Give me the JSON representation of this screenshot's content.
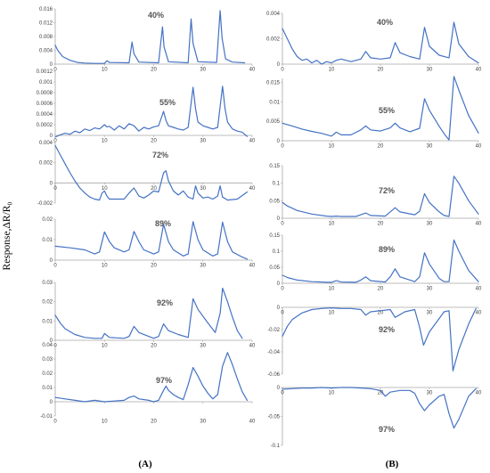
{
  "figure": {
    "ylabel": "Response,ΔR/R₀",
    "colors": {
      "line": "#4472C4",
      "axis": "#a6a6a6",
      "text": "#404040"
    }
  },
  "chart_data": [
    {
      "type": "line",
      "panel": "A",
      "panel_label": "(A)",
      "rh_label": "40%",
      "xlim": [
        0,
        40
      ],
      "ylim": [
        0,
        0.016
      ],
      "yticks": [
        0,
        0.004,
        0.008,
        0.012,
        0.016
      ],
      "ytick_labels": [
        "0",
        "0.004",
        "0.008",
        "0.012",
        "0.016"
      ],
      "xticks": [
        0,
        10,
        20,
        30,
        40
      ],
      "x": [
        0,
        0.5,
        1.5,
        3,
        4.5,
        6,
        8,
        10,
        10.5,
        11,
        15,
        15.6,
        16,
        17,
        21,
        21.8,
        22.1,
        23,
        27,
        27.6,
        28,
        29,
        32.8,
        33.5,
        33.9,
        34.6,
        36,
        38.5
      ],
      "y": [
        0.0055,
        0.004,
        0.0022,
        0.0011,
        0.0005,
        0.0003,
        0.0002,
        0.0002,
        0.001,
        0.0005,
        0.0004,
        0.0064,
        0.003,
        0.0006,
        0.0004,
        0.0108,
        0.005,
        0.0007,
        0.0004,
        0.0131,
        0.006,
        0.0007,
        0.0005,
        0.0155,
        0.0075,
        0.0015,
        0.0006,
        0.0004
      ]
    },
    {
      "type": "line",
      "panel": "A",
      "rh_label": "55%",
      "xlim": [
        0,
        40
      ],
      "ylim": [
        0,
        0.0012
      ],
      "yticks": [
        0,
        0.0002,
        0.0004,
        0.0006,
        0.0008,
        0.001,
        0.0012
      ],
      "ytick_labels": [
        "0",
        "0.0002",
        "0.0004",
        "0.0006",
        "0.0008",
        "0.001",
        "0.0012"
      ],
      "xticks": [
        0,
        10,
        20,
        30,
        40
      ],
      "x": [
        0,
        1,
        2,
        3,
        4,
        5,
        6,
        7,
        8,
        9,
        10,
        10.5,
        11,
        12,
        13,
        14,
        15,
        16,
        17,
        18,
        19,
        20,
        21,
        22,
        22.5,
        23,
        24,
        25,
        26,
        27,
        28,
        28.5,
        29,
        30,
        31,
        32,
        33,
        34,
        34.5,
        35,
        36,
        37,
        38,
        39
      ],
      "y": [
        -3e-05,
        1e-05,
        4e-05,
        2e-05,
        8e-05,
        5e-05,
        0.00012,
        9e-05,
        0.00014,
        0.00012,
        0.0002,
        0.00016,
        0.00017,
        0.0001,
        0.00018,
        0.00012,
        0.00022,
        0.00018,
        8e-05,
        0.00015,
        0.00012,
        0.00016,
        0.00018,
        0.00045,
        0.00028,
        0.00018,
        0.00015,
        0.00012,
        0.0001,
        0.00015,
        0.0009,
        0.0005,
        0.00025,
        0.00018,
        0.00015,
        0.00012,
        0.00015,
        0.00092,
        0.0005,
        0.00025,
        0.00012,
        8e-05,
        6e-05,
        -2e-05
      ]
    },
    {
      "type": "line",
      "panel": "A",
      "rh_label": "72%",
      "xlim": [
        0,
        40
      ],
      "ylim": [
        -0.002,
        0.004
      ],
      "yticks": [
        -0.002,
        0,
        0.002,
        0.004
      ],
      "ytick_labels": [
        "-0.002",
        "0",
        "0.002",
        "0.004"
      ],
      "xticks": [
        0,
        10,
        20,
        30,
        40
      ],
      "x": [
        0,
        1,
        2,
        3,
        4,
        5,
        6,
        7,
        8,
        9,
        9.5,
        10,
        10.5,
        11,
        14,
        15,
        16,
        17,
        18,
        19,
        20,
        21,
        22,
        22.5,
        23,
        24,
        25,
        26,
        27,
        28,
        28.5,
        29,
        30,
        31,
        32,
        33,
        33.5,
        34,
        35,
        37,
        39
      ],
      "y": [
        0.0037,
        0.0028,
        0.0019,
        0.001,
        0.0002,
        -0.0005,
        -0.001,
        -0.0014,
        -0.0016,
        -0.0017,
        -0.001,
        -0.0008,
        -0.0013,
        -0.0016,
        -0.0016,
        -0.001,
        -0.0005,
        -0.0013,
        -0.0015,
        -0.0012,
        -0.0008,
        -0.0009,
        0.001,
        0.0012,
        0.0002,
        -0.0008,
        -0.0012,
        -0.0008,
        -0.0014,
        -0.0016,
        -0.0003,
        -0.001,
        -0.0015,
        -0.0014,
        -0.0016,
        -0.0013,
        -0.0003,
        -0.0014,
        -0.0017,
        -0.0016,
        -0.0009
      ]
    },
    {
      "type": "line",
      "panel": "A",
      "rh_label": "89%",
      "xlim": [
        0,
        40
      ],
      "ylim": [
        0,
        0.02
      ],
      "yticks": [
        0,
        0.01,
        0.02
      ],
      "ytick_labels": [
        "0",
        "0.01",
        "0.02"
      ],
      "xticks": [
        0,
        10,
        20,
        30,
        40
      ],
      "x": [
        0,
        3,
        6,
        8,
        9,
        10,
        11,
        12,
        14,
        15,
        16,
        17,
        18,
        20,
        21,
        22,
        23,
        24,
        26,
        27,
        28,
        29,
        30,
        32,
        33,
        34,
        35,
        36,
        38,
        39
      ],
      "y": [
        0.0068,
        0.006,
        0.005,
        0.003,
        0.004,
        0.0138,
        0.009,
        0.006,
        0.004,
        0.005,
        0.014,
        0.009,
        0.005,
        0.003,
        0.004,
        0.0175,
        0.009,
        0.005,
        0.002,
        0.003,
        0.0188,
        0.01,
        0.005,
        0.002,
        0.003,
        0.0185,
        0.009,
        0.004,
        0.0015,
        0.0005
      ]
    },
    {
      "type": "line",
      "panel": "A",
      "rh_label": "92%",
      "xlim": [
        0,
        40
      ],
      "ylim": [
        0,
        0.03
      ],
      "yticks": [
        0,
        0.01,
        0.02,
        0.03
      ],
      "ytick_labels": [
        "0",
        "0.01",
        "0.02",
        "0.03"
      ],
      "xticks": [
        0,
        10,
        20,
        30,
        40
      ],
      "x": [
        0,
        1,
        2,
        4,
        6,
        8,
        9.5,
        10,
        11,
        14,
        15,
        16,
        17,
        20,
        21,
        22,
        23,
        25,
        27,
        28,
        29,
        31,
        32.5,
        33.5,
        34,
        35,
        36,
        37,
        38
      ],
      "y": [
        0.013,
        0.009,
        0.006,
        0.003,
        0.0015,
        0.001,
        0.001,
        0.0035,
        0.0015,
        0.001,
        0.002,
        0.0072,
        0.004,
        0.001,
        0.002,
        0.0085,
        0.005,
        0.003,
        0.0015,
        0.0215,
        0.016,
        0.009,
        0.004,
        0.014,
        0.027,
        0.02,
        0.012,
        0.005,
        0.001
      ]
    },
    {
      "type": "line",
      "panel": "A",
      "rh_label": "97%",
      "xlim": [
        0,
        40
      ],
      "ylim": [
        -0.01,
        0.04
      ],
      "yticks": [
        -0.01,
        0,
        0.01,
        0.02,
        0.03,
        0.04
      ],
      "ytick_labels": [
        "-0.01",
        "0",
        "0.01",
        "0.02",
        "0.03",
        "0.04"
      ],
      "xticks": [
        0,
        10,
        20,
        30,
        40
      ],
      "x": [
        0,
        2,
        4,
        6,
        8,
        10,
        12,
        14,
        15,
        16,
        17,
        19,
        20,
        21,
        22,
        22.5,
        23,
        24,
        25,
        26,
        27,
        28,
        29,
        30,
        31,
        32,
        33,
        34,
        35,
        36,
        37,
        38,
        39
      ],
      "y": [
        0.003,
        0.002,
        0.001,
        0,
        0.001,
        0,
        0.0005,
        0.001,
        0.003,
        0.004,
        0.002,
        0.001,
        0,
        0.001,
        0.008,
        0.011,
        0.008,
        0.005,
        0.003,
        0.0015,
        0.012,
        0.024,
        0.018,
        0.011,
        0.006,
        0.002,
        0.005,
        0.025,
        0.0345,
        0.026,
        0.016,
        0.007,
        0.001
      ]
    },
    {
      "type": "line",
      "panel": "B",
      "panel_label": "(B)",
      "rh_label": "40%",
      "xlim": [
        0,
        40
      ],
      "ylim": [
        0,
        0.004
      ],
      "yticks": [
        0,
        0.002,
        0.004
      ],
      "ytick_labels": [
        "0",
        "0.002",
        "0.004"
      ],
      "xticks": [
        0,
        10,
        20,
        30,
        40
      ],
      "x": [
        0,
        1,
        2,
        3,
        4,
        5,
        6,
        7,
        8,
        9,
        10,
        11,
        12,
        14,
        16,
        17,
        18,
        20,
        22,
        23,
        24,
        26,
        28,
        29,
        30,
        32,
        34,
        35,
        36,
        38,
        40
      ],
      "y": [
        0.0028,
        0.002,
        0.0012,
        0.0006,
        0.0003,
        0.0004,
        0.0001,
        0.0003,
        0,
        0.0002,
        0.0001,
        0.0003,
        0.0004,
        0.0002,
        0.0004,
        0.001,
        0.0005,
        0.0004,
        0.0005,
        0.0017,
        0.0009,
        0.0006,
        0.0004,
        0.0029,
        0.0014,
        0.0007,
        0.0005,
        0.0033,
        0.0016,
        0.0006,
        0.0001
      ]
    },
    {
      "type": "line",
      "panel": "B",
      "rh_label": "55%",
      "xlim": [
        0,
        40
      ],
      "ylim": [
        0,
        0.016
      ],
      "yticks": [
        0,
        0.005,
        0.01,
        0.015
      ],
      "ytick_labels": [
        "0",
        "0.005",
        "0.01",
        "0.015"
      ],
      "xticks": [
        0,
        10,
        20,
        30,
        40
      ],
      "x": [
        0,
        2,
        4,
        6,
        8,
        10,
        11,
        12,
        14,
        16,
        17,
        18,
        20,
        22,
        23,
        24,
        26,
        28,
        29,
        30,
        32,
        33,
        34,
        35,
        36,
        38,
        40
      ],
      "y": [
        0.0045,
        0.0038,
        0.003,
        0.0024,
        0.0019,
        0.0012,
        0.0022,
        0.0015,
        0.0015,
        0.0028,
        0.0038,
        0.0028,
        0.0025,
        0.0033,
        0.0045,
        0.0033,
        0.0023,
        0.0032,
        0.0108,
        0.0078,
        0.0037,
        0.0018,
        0.0002,
        0.0165,
        0.013,
        0.0065,
        0.002
      ]
    },
    {
      "type": "line",
      "panel": "B",
      "rh_label": "72%",
      "xlim": [
        0,
        40
      ],
      "ylim": [
        0,
        0.15
      ],
      "yticks": [
        0,
        0.05,
        0.1,
        0.15
      ],
      "ytick_labels": [
        "0",
        "0.05",
        "0.1",
        "0.15"
      ],
      "xticks": [
        0,
        10,
        20,
        30,
        40
      ],
      "x": [
        0,
        1,
        3,
        6,
        9,
        10,
        11,
        12,
        15,
        16,
        17,
        18,
        21,
        22,
        23,
        24,
        27,
        28,
        29,
        30,
        32,
        33,
        34,
        35,
        36,
        38,
        40
      ],
      "y": [
        0.045,
        0.035,
        0.022,
        0.012,
        0.006,
        0.005,
        0.006,
        0.005,
        0.005,
        0.01,
        0.015,
        0.008,
        0.006,
        0.018,
        0.03,
        0.018,
        0.01,
        0.02,
        0.07,
        0.045,
        0.018,
        0.008,
        0.005,
        0.12,
        0.1,
        0.05,
        0.012
      ]
    },
    {
      "type": "line",
      "panel": "B",
      "rh_label": "89%",
      "xlim": [
        0,
        40
      ],
      "ylim": [
        0,
        0.15
      ],
      "yticks": [
        0,
        0.05,
        0.1,
        0.15
      ],
      "ytick_labels": [
        "0",
        "0.05",
        "0.1",
        "0.15"
      ],
      "xticks": [
        0,
        10,
        20,
        30,
        40
      ],
      "x": [
        0,
        1,
        3,
        6,
        9,
        10,
        11,
        12,
        15,
        16,
        17,
        18,
        21,
        22,
        23,
        24,
        27,
        28,
        29,
        30,
        32,
        33,
        34,
        35,
        36,
        38,
        40
      ],
      "y": [
        0.025,
        0.018,
        0.01,
        0.005,
        0.003,
        0.003,
        0.008,
        0.004,
        0.003,
        0.01,
        0.02,
        0.008,
        0.004,
        0.02,
        0.045,
        0.02,
        0.005,
        0.02,
        0.095,
        0.06,
        0.015,
        0.005,
        0.005,
        0.135,
        0.1,
        0.04,
        0.005
      ]
    },
    {
      "type": "line",
      "panel": "B",
      "rh_label": "92%",
      "xlim": [
        0,
        40
      ],
      "ylim": [
        -0.06,
        0
      ],
      "yticks": [
        -0.06,
        -0.04,
        -0.02,
        0
      ],
      "ytick_labels": [
        "-0.06",
        "-0.04",
        "-0.02",
        "0"
      ],
      "xticks": [
        0,
        10,
        20,
        30,
        40
      ],
      "x": [
        0,
        1,
        2,
        4,
        6,
        8,
        10,
        12,
        14,
        16,
        17,
        18,
        20,
        22,
        23,
        25,
        27,
        28,
        28.8,
        30,
        32,
        33,
        34,
        34.8,
        36,
        38,
        39.5
      ],
      "y": [
        -0.026,
        -0.017,
        -0.011,
        -0.005,
        -0.002,
        -0.001,
        -0.0005,
        -0.001,
        -0.001,
        -0.002,
        -0.007,
        -0.004,
        -0.003,
        -0.002,
        -0.009,
        -0.004,
        -0.002,
        -0.018,
        -0.034,
        -0.022,
        -0.01,
        -0.004,
        -0.003,
        -0.057,
        -0.038,
        -0.015,
        -0.001
      ]
    },
    {
      "type": "line",
      "panel": "B",
      "rh_label": "97%",
      "xlim": [
        0,
        40
      ],
      "ylim": [
        -0.1,
        0
      ],
      "yticks": [
        -0.1,
        -0.05,
        0
      ],
      "ytick_labels": [
        "-0.1",
        "-0.05",
        "0"
      ],
      "xticks": [
        0,
        10,
        20,
        30,
        40
      ],
      "x": [
        0,
        2,
        4,
        6,
        8,
        10,
        12,
        14,
        16,
        18,
        20,
        21,
        22,
        24,
        26,
        27,
        28,
        29,
        30,
        32,
        33,
        34,
        35,
        36,
        37,
        38,
        39.5
      ],
      "y": [
        -0.003,
        -0.002,
        -0.001,
        -0.001,
        0,
        -0.001,
        0,
        0,
        -0.001,
        -0.002,
        -0.005,
        -0.015,
        -0.008,
        -0.005,
        -0.005,
        -0.01,
        -0.028,
        -0.04,
        -0.03,
        -0.015,
        -0.012,
        -0.045,
        -0.07,
        -0.055,
        -0.035,
        -0.015,
        -0.002
      ]
    }
  ]
}
